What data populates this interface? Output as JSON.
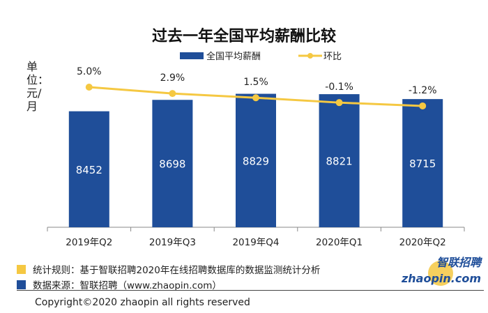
{
  "chart_data": {
    "type": "bar+line",
    "title": "过去一年全国平均薪酬比较",
    "ylabel": "单位：元/月",
    "categories": [
      "2019年Q2",
      "2019年Q3",
      "2019年Q4",
      "2020年Q1",
      "2020年Q2"
    ],
    "series": [
      {
        "name": "全国平均薪酬",
        "type": "bar",
        "values": [
          8452,
          8698,
          8829,
          8821,
          8715
        ],
        "color": "#1f4e99"
      },
      {
        "name": "环比",
        "type": "line",
        "values": [
          5.0,
          2.9,
          1.5,
          -0.1,
          -1.2
        ],
        "labels": [
          "5.0%",
          "2.9%",
          "1.5%",
          "-0.1%",
          "-1.2%"
        ],
        "color": "#f5c842"
      }
    ],
    "legend": "top-center",
    "grid": false
  },
  "footer": {
    "rule_text": "统计规则：基于智联招聘2020年在线招聘数据库的数据监测统计分析",
    "source_text": "数据来源：智联招聘（www.zhaopin.com）",
    "copyright": "Copyright©2020 zhaopin all rights reserved",
    "rule_color": "#f5c842",
    "source_color": "#1f4e99"
  },
  "logo": {
    "cn": "智联招聘",
    "en": "zhaopin.com"
  }
}
